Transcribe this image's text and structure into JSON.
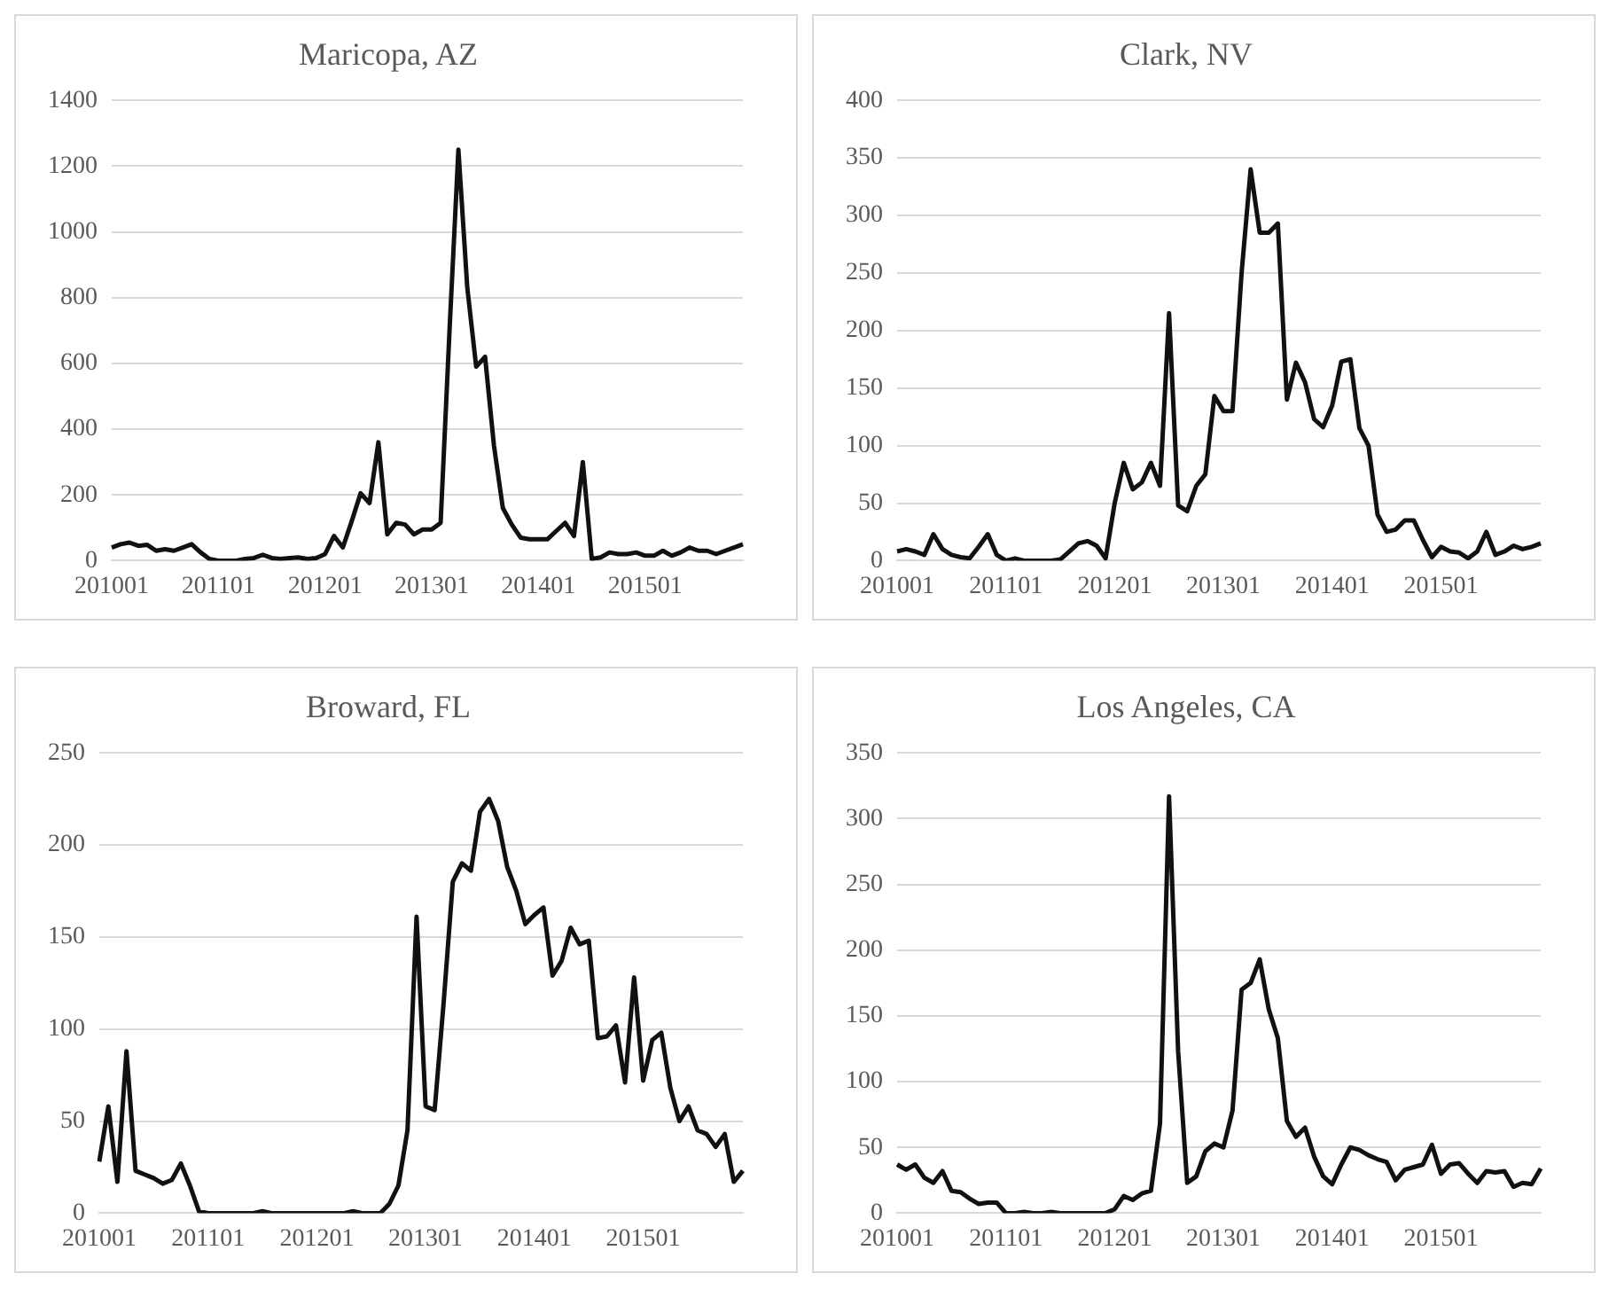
{
  "chart_data": [
    {
      "type": "line",
      "title": "Maricopa, AZ",
      "categories": [
        "201001",
        null,
        null,
        null,
        null,
        null,
        null,
        null,
        null,
        null,
        null,
        null,
        "201101",
        null,
        null,
        null,
        null,
        null,
        null,
        null,
        null,
        null,
        null,
        null,
        "201201",
        null,
        null,
        null,
        null,
        null,
        null,
        null,
        null,
        null,
        null,
        null,
        "201301",
        null,
        null,
        null,
        null,
        null,
        null,
        null,
        null,
        null,
        null,
        null,
        "201401",
        null,
        null,
        null,
        null,
        null,
        null,
        null,
        null,
        null,
        null,
        null,
        "201501",
        null,
        null,
        null,
        null,
        null,
        null,
        null,
        null,
        null,
        null,
        null
      ],
      "series": [
        {
          "color": "#111111",
          "values": [
            40,
            50,
            55,
            45,
            48,
            30,
            35,
            30,
            40,
            50,
            25,
            5,
            0,
            0,
            0,
            5,
            8,
            18,
            8,
            5,
            8,
            10,
            5,
            8,
            20,
            75,
            40,
            120,
            205,
            175,
            360,
            80,
            115,
            110,
            80,
            95,
            95,
            115,
            700,
            1250,
            830,
            590,
            620,
            350,
            160,
            110,
            70,
            65,
            65,
            65,
            90,
            115,
            75,
            300,
            5,
            10,
            25,
            20,
            20,
            25,
            15,
            15,
            30,
            15,
            25,
            40,
            30,
            30,
            20,
            30,
            40,
            50
          ]
        }
      ],
      "ylim": [
        0,
        1400
      ],
      "yticks": [
        0,
        200,
        400,
        600,
        800,
        1000,
        1200,
        1400
      ],
      "grid": "y",
      "marker": "none",
      "line_style": "solid",
      "legend": false
    },
    {
      "type": "line",
      "title": "Clark, NV",
      "categories": [
        "201001",
        null,
        null,
        null,
        null,
        null,
        null,
        null,
        null,
        null,
        null,
        null,
        "201101",
        null,
        null,
        null,
        null,
        null,
        null,
        null,
        null,
        null,
        null,
        null,
        "201201",
        null,
        null,
        null,
        null,
        null,
        null,
        null,
        null,
        null,
        null,
        null,
        "201301",
        null,
        null,
        null,
        null,
        null,
        null,
        null,
        null,
        null,
        null,
        null,
        "201401",
        null,
        null,
        null,
        null,
        null,
        null,
        null,
        null,
        null,
        null,
        null,
        "201501",
        null,
        null,
        null,
        null,
        null,
        null,
        null,
        null,
        null,
        null,
        null
      ],
      "series": [
        {
          "color": "#111111",
          "values": [
            8,
            10,
            8,
            5,
            23,
            10,
            5,
            3,
            2,
            12,
            23,
            5,
            0,
            2,
            0,
            0,
            0,
            0,
            1,
            8,
            15,
            17,
            13,
            2,
            50,
            85,
            62,
            68,
            85,
            65,
            215,
            48,
            43,
            65,
            75,
            143,
            130,
            130,
            250,
            340,
            285,
            285,
            293,
            140,
            172,
            155,
            123,
            116,
            135,
            173,
            175,
            115,
            100,
            40,
            25,
            27,
            35,
            35,
            18,
            3,
            12,
            8,
            7,
            2,
            8,
            25,
            5,
            8,
            13,
            10,
            12,
            15
          ]
        }
      ],
      "ylim": [
        0,
        400
      ],
      "yticks": [
        0,
        50,
        100,
        150,
        200,
        250,
        300,
        350,
        400
      ],
      "grid": "y",
      "marker": "none",
      "line_style": "solid",
      "legend": false
    },
    {
      "type": "line",
      "title": "Broward, FL",
      "categories": [
        "201001",
        null,
        null,
        null,
        null,
        null,
        null,
        null,
        null,
        null,
        null,
        null,
        "201101",
        null,
        null,
        null,
        null,
        null,
        null,
        null,
        null,
        null,
        null,
        null,
        "201201",
        null,
        null,
        null,
        null,
        null,
        null,
        null,
        null,
        null,
        null,
        null,
        "201301",
        null,
        null,
        null,
        null,
        null,
        null,
        null,
        null,
        null,
        null,
        null,
        "201401",
        null,
        null,
        null,
        null,
        null,
        null,
        null,
        null,
        null,
        null,
        null,
        "201501",
        null,
        null,
        null,
        null,
        null,
        null,
        null,
        null,
        null,
        null,
        null
      ],
      "series": [
        {
          "color": "#111111",
          "values": [
            28,
            58,
            17,
            88,
            23,
            21,
            19,
            16,
            18,
            27,
            15,
            1,
            0,
            0,
            0,
            0,
            0,
            0,
            1,
            0,
            0,
            0,
            0,
            0,
            0,
            0,
            0,
            0,
            1,
            0,
            0,
            0,
            5,
            15,
            45,
            161,
            58,
            56,
            115,
            180,
            190,
            186,
            218,
            225,
            213,
            188,
            175,
            157,
            162,
            166,
            129,
            137,
            155,
            146,
            148,
            95,
            96,
            102,
            71,
            128,
            72,
            94,
            98,
            68,
            50,
            58,
            45,
            43,
            36,
            43,
            17,
            23
          ]
        }
      ],
      "ylim": [
        0,
        250
      ],
      "yticks": [
        0,
        50,
        100,
        150,
        200,
        250
      ],
      "grid": "y",
      "marker": "none",
      "line_style": "solid",
      "legend": false
    },
    {
      "type": "line",
      "title": "Los Angeles, CA",
      "categories": [
        "201001",
        null,
        null,
        null,
        null,
        null,
        null,
        null,
        null,
        null,
        null,
        null,
        "201101",
        null,
        null,
        null,
        null,
        null,
        null,
        null,
        null,
        null,
        null,
        null,
        "201201",
        null,
        null,
        null,
        null,
        null,
        null,
        null,
        null,
        null,
        null,
        null,
        "201301",
        null,
        null,
        null,
        null,
        null,
        null,
        null,
        null,
        null,
        null,
        null,
        "201401",
        null,
        null,
        null,
        null,
        null,
        null,
        null,
        null,
        null,
        null,
        null,
        "201501",
        null,
        null,
        null,
        null,
        null,
        null,
        null,
        null,
        null,
        null,
        null
      ],
      "series": [
        {
          "color": "#111111",
          "values": [
            37,
            33,
            37,
            27,
            23,
            32,
            17,
            16,
            11,
            7,
            8,
            8,
            0,
            0,
            1,
            0,
            0,
            1,
            0,
            0,
            0,
            0,
            0,
            0,
            3,
            13,
            10,
            15,
            17,
            68,
            317,
            123,
            23,
            28,
            47,
            53,
            50,
            78,
            170,
            175,
            193,
            155,
            133,
            70,
            58,
            65,
            43,
            28,
            22,
            37,
            50,
            48,
            44,
            41,
            39,
            25,
            33,
            35,
            37,
            52,
            30,
            37,
            38,
            30,
            23,
            32,
            31,
            32,
            20,
            23,
            22,
            34
          ]
        }
      ],
      "ylim": [
        0,
        350
      ],
      "yticks": [
        0,
        50,
        100,
        150,
        200,
        250,
        300,
        350
      ],
      "grid": "y",
      "marker": "none",
      "line_style": "solid",
      "legend": false
    }
  ]
}
